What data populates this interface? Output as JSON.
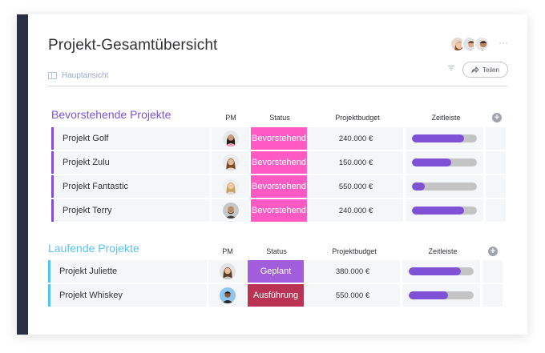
{
  "board": {
    "title": "Projekt-Gesamtübersicht",
    "view_label": "Hauptansicht",
    "share_label": "Teilen",
    "more_icon": "more-dots-icon",
    "filter_icon": "filter-icon"
  },
  "columns": {
    "pm": "PM",
    "status": "Status",
    "budget": "Projektbudget",
    "timeline": "Zeitleiste"
  },
  "colors": {
    "sidebar": "#2b2f45",
    "group_upcoming": "#7e51d6",
    "group_running": "#55c4f2",
    "status_upcoming": "#ff5ac4",
    "status_planned": "#a25ddc",
    "status_execution": "#bb3354",
    "timeline_fill": "#7e51d6",
    "timeline_track": "#c4c4c4"
  },
  "groups": [
    {
      "title": "Bevorstehende Projekte",
      "rows": [
        {
          "name": "Projekt Golf",
          "status": "Bevorstehend",
          "budget": "240.000 €",
          "progress": 0.8
        },
        {
          "name": "Projekt Zulu",
          "status": "Bevorstehend",
          "budget": "150.000 €",
          "progress": 0.6
        },
        {
          "name": "Projekt Fantastic",
          "status": "Bevorstehend",
          "budget": "550.000 €",
          "progress": 0.2
        },
        {
          "name": "Projekt Terry",
          "status": "Bevorstehend",
          "budget": "240.000 €",
          "progress": 0.8
        }
      ]
    },
    {
      "title": "Laufende Projekte",
      "rows": [
        {
          "name": "Projekt Juliette",
          "status": "Geplant",
          "budget": "380.000 €",
          "progress": 0.8
        },
        {
          "name": "Projekt Whiskey",
          "status": "Ausführung",
          "budget": "550.000 €",
          "progress": 0.6
        }
      ]
    }
  ]
}
